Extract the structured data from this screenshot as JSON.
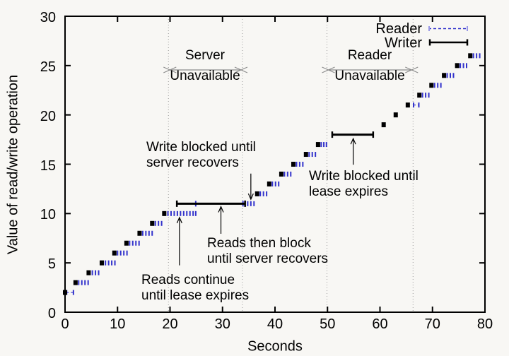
{
  "colors": {
    "reader_blue": "#3232cc",
    "reader_cap_blue": "#9a9ae6",
    "writer_black": "#000000",
    "arrow_gray": "#8c8c8c",
    "dotted_gray": "#9a9a9a",
    "axis_black": "#000000",
    "background": "#f8f7f4"
  },
  "chart_data": {
    "type": "scatter",
    "title": "",
    "xlabel": "Seconds",
    "ylabel": "Value of read/write operation",
    "xlim": [
      0,
      80
    ],
    "ylim": [
      0,
      30
    ],
    "x_ticks": [
      0,
      10,
      20,
      30,
      40,
      50,
      60,
      70,
      80
    ],
    "y_ticks": [
      0,
      5,
      10,
      15,
      20,
      25,
      30
    ],
    "grid": false,
    "legend_position": "top-right-inside",
    "legend": [
      {
        "name": "Reader",
        "style": "blue-dashed-errorbar"
      },
      {
        "name": "Writer",
        "style": "black-solid-errorbar"
      }
    ],
    "dotted_lines_seconds": [
      19.7,
      33.8,
      49.9,
      66.3
    ],
    "regions": [
      {
        "lines": [
          "Server",
          "Unavailable"
        ],
        "from_s": 19.7,
        "to_s": 33.8
      },
      {
        "lines": [
          "Reader",
          "Unavailable"
        ],
        "from_s": 49.9,
        "to_s": 66.3
      }
    ],
    "annotations": [
      {
        "lines": [
          "Write blocked until",
          "server recovers"
        ],
        "arrow": {
          "s": 35.4,
          "from_v": 14.05,
          "to_v": 11.45,
          "dir": "down"
        }
      },
      {
        "lines": [
          "Reads then block",
          "until server recovers"
        ],
        "arrow": {
          "s": 29.7,
          "from_v": 7.95,
          "to_v": 10.7,
          "dir": "up"
        }
      },
      {
        "lines": [
          "Reads continue",
          "until lease expires"
        ],
        "arrow": {
          "s": 21.8,
          "from_v": 4.75,
          "to_v": 9.6,
          "dir": "up"
        }
      },
      {
        "lines": [
          "Write blocked until",
          "lease expires"
        ],
        "arrow": {
          "s": 54.9,
          "from_v": 14.95,
          "to_v": 17.6,
          "dir": "up"
        }
      }
    ],
    "operations": [
      {
        "value": 2,
        "write_at": 0.0,
        "read_bar": [
          0.3,
          1.6
        ],
        "reads": []
      },
      {
        "value": 3,
        "write_at": 2.0,
        "reads": [
          2.6,
          3.2,
          3.8,
          4.4
        ]
      },
      {
        "value": 4,
        "write_at": 4.5,
        "reads": [
          5.2,
          5.8,
          6.4
        ]
      },
      {
        "value": 5,
        "write_at": 7.0,
        "reads": [
          7.7,
          8.3,
          8.9,
          9.5
        ]
      },
      {
        "value": 6,
        "write_at": 9.4,
        "reads": [
          10.0,
          10.6,
          11.2,
          11.8
        ]
      },
      {
        "value": 7,
        "write_at": 11.7,
        "reads": [
          12.3,
          12.9,
          13.5,
          14.1
        ]
      },
      {
        "value": 8,
        "write_at": 14.2,
        "reads": [
          14.8,
          15.4,
          16.0,
          16.6
        ]
      },
      {
        "value": 9,
        "write_at": 16.6,
        "reads": [
          17.2,
          17.8,
          18.4
        ]
      },
      {
        "value": 10,
        "write_at": 18.9,
        "reads": [
          19.6,
          20.2,
          20.8,
          21.4,
          22.0,
          22.6,
          23.2,
          23.8,
          24.4,
          24.9
        ]
      },
      {
        "value": 11,
        "write_blocked": [
          21.3,
          34.3
        ],
        "read_blocked": [
          24.9,
          33.9
        ],
        "reads": [
          34.8,
          35.4,
          36.0
        ]
      },
      {
        "value": 12,
        "write_at": 36.6,
        "reads": [
          37.2,
          37.8,
          38.4
        ]
      },
      {
        "value": 13,
        "write_at": 38.9,
        "reads": [
          39.5,
          40.1,
          40.7
        ]
      },
      {
        "value": 14,
        "write_at": 41.2,
        "reads": [
          41.8,
          42.4,
          43.0
        ]
      },
      {
        "value": 15,
        "write_at": 43.5,
        "reads": [
          44.1,
          44.7,
          45.3
        ]
      },
      {
        "value": 16,
        "write_at": 45.9,
        "reads": [
          46.5,
          47.1,
          47.7
        ]
      },
      {
        "value": 17,
        "write_at": 48.2,
        "reads": [
          48.8,
          49.3,
          49.8
        ]
      },
      {
        "value": 18,
        "write_blocked": [
          50.9,
          58.7
        ],
        "reads": []
      },
      {
        "value": 19,
        "write_at": 60.7,
        "reads": []
      },
      {
        "value": 20,
        "write_at": 63.0,
        "reads": []
      },
      {
        "value": 21,
        "write_at": 65.3,
        "read_bar": [
          66.4,
          67.4
        ],
        "reads": []
      },
      {
        "value": 22,
        "write_at": 67.5,
        "reads": [
          68.1,
          68.7,
          69.3
        ]
      },
      {
        "value": 23,
        "write_at": 69.8,
        "reads": [
          70.4,
          71.0,
          71.6
        ]
      },
      {
        "value": 24,
        "write_at": 72.2,
        "reads": [
          72.8,
          73.4,
          74.0
        ]
      },
      {
        "value": 25,
        "write_at": 74.7,
        "reads": [
          75.3,
          75.9,
          76.5
        ]
      },
      {
        "value": 26,
        "write_at": 77.2,
        "reads": [
          77.8,
          78.4,
          79.0
        ]
      }
    ]
  }
}
